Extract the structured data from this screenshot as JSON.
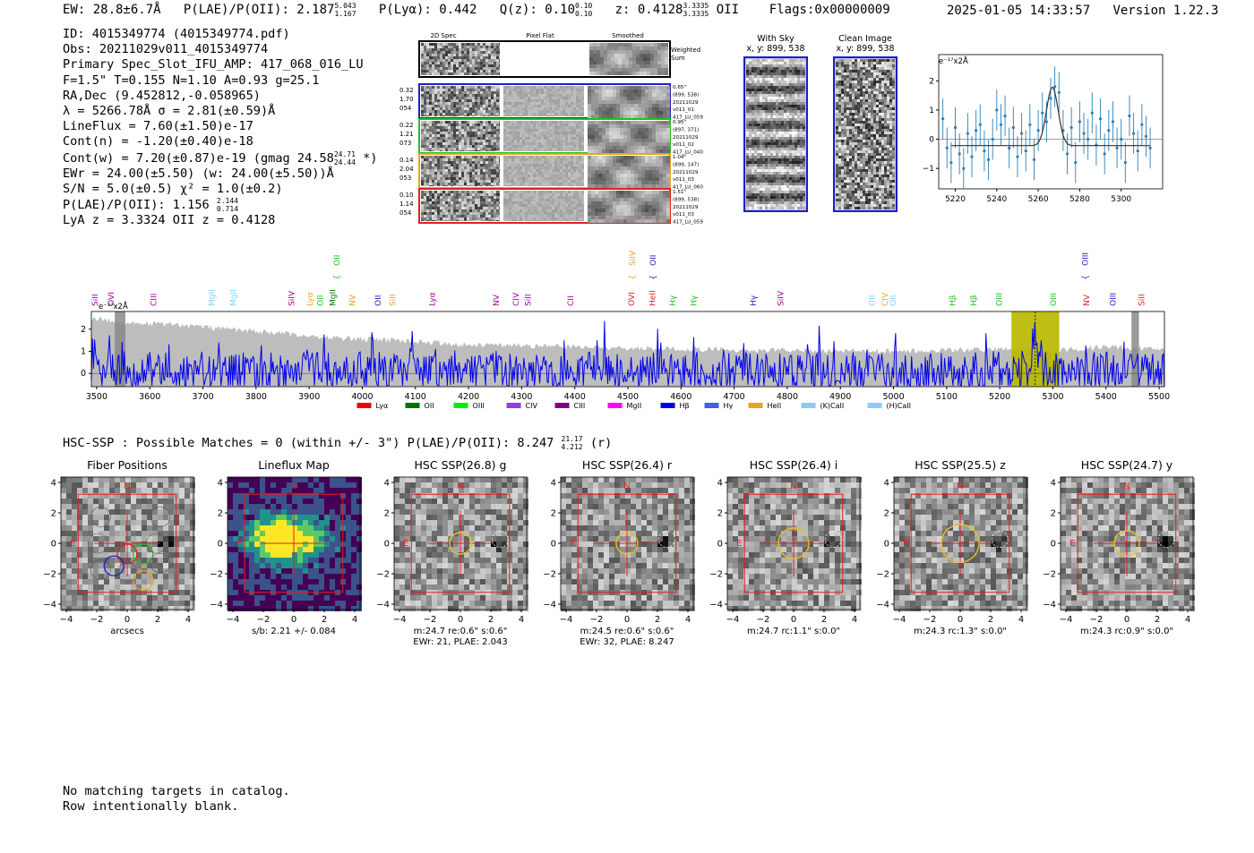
{
  "header": {
    "ew": "EW: 28.8±6.7Å",
    "plae_label": "P(LAE)/P(OII): 2.187",
    "plae_hi": "5.043",
    "plae_lo": "1.167",
    "plya": "P(Lyα): 0.442",
    "qz_label": "Q(z): 0.10",
    "qz_hi": "0.10",
    "qz_lo": "0.10",
    "z_label": "z: 0.4128",
    "z_hi": "3.3335",
    "z_lo": "3.3335",
    "z_suffix": "OII",
    "flags": "Flags:0x00000009",
    "datetime": "2025-01-05 14:33:57",
    "version": "Version 1.22.3"
  },
  "summary": {
    "id": "ID: 4015349774 (4015349774.pdf)",
    "obs": "Obs: 20211029v011_4015349774",
    "primary": "Primary Spec_Slot_IFU_AMP: 417_068_016_LU",
    "params": "F=1.5\"  T=0.155  N=1.10  A=0.93  g=25.1",
    "radec": "RA,Dec (9.452812,-0.058965)",
    "lambda": "λ = 5266.78Å   σ = 2.81(±0.59)Å",
    "lineflux": "LineFlux = 7.60(±1.50)e-17",
    "contn": "Cont(n) = -1.20(±0.40)e-18",
    "contw": "Cont(w) = 7.20(±0.87)e-19 (gmag 24.58",
    "contw_hi": "24.71",
    "contw_lo": "24.44",
    "contw_end": "*)",
    "ewr": "EWr = 24.00(±5.50) (w: 24.00(±5.50))Å",
    "sn": "S/N = 5.0(±0.5)  χ² = 1.0(±0.2)",
    "plae": "P(LAE)/P(OII): 1.156",
    "plae_hi": "2.144",
    "plae_lo": "0.714",
    "lya": "LyA z = 3.3324  OII z = 0.4128"
  },
  "cutouts": {
    "col_headers": [
      "2D Spec",
      "Pixel Flat",
      "Smoothed"
    ],
    "weighted_label": "Weighted Sum",
    "rows": [
      {
        "stats": [
          "0.32",
          "1.70",
          "054"
        ],
        "info": [
          "0.65\"",
          "(899, 538)",
          "20211029",
          "v011_01",
          "417_LU_059"
        ],
        "color": "#2020c0"
      },
      {
        "stats": [
          "0.22",
          "1.21",
          "073"
        ],
        "info": [
          "0.95\"",
          "(897, 371)",
          "20211029",
          "v011_02",
          "417_LU_040"
        ],
        "color": "#20c020"
      },
      {
        "stats": [
          "0.14",
          "2.04",
          "053"
        ],
        "info": [
          "1.04\"",
          "(899, 147)",
          "20211029",
          "v011_03",
          "417_LU_060"
        ],
        "color": "#f0a020"
      },
      {
        "stats": [
          "0.10",
          "1.14",
          "054"
        ],
        "info": [
          "1.51\"",
          "(899, 538)",
          "20211029",
          "v011_03",
          "417_LU_059"
        ],
        "color": "#e02020"
      }
    ]
  },
  "sky_panels": {
    "with_sky": "With Sky",
    "with_sky_xy": "x, y: 899, 538",
    "clean": "Clean Image",
    "clean_xy": "x, y: 899, 538"
  },
  "colors": {
    "main_line": "#0000ee",
    "sky_fill": "#bdbdbd",
    "highlight": "#b8b800",
    "fit_line": "#2f7fb5",
    "frame_red": "#e02020"
  },
  "chart_data": [
    {
      "id": "line-fit",
      "type": "scatter",
      "title": "",
      "ylabel": "e⁻¹⁷x2Å",
      "xlim": [
        5212,
        5320
      ],
      "ylim": [
        -1.7,
        2.9
      ],
      "xticks": [
        5220,
        5240,
        5260,
        5280,
        5300
      ],
      "yticks": [
        -1,
        0,
        1,
        2
      ],
      "x": [
        5214,
        5216,
        5218,
        5220,
        5222,
        5224,
        5226,
        5228,
        5230,
        5232,
        5234,
        5236,
        5238,
        5240,
        5242,
        5244,
        5246,
        5248,
        5250,
        5252,
        5254,
        5256,
        5258,
        5260,
        5262,
        5264,
        5266,
        5268,
        5270,
        5272,
        5274,
        5276,
        5278,
        5280,
        5282,
        5284,
        5286,
        5288,
        5290,
        5292,
        5294,
        5296,
        5298,
        5300,
        5302,
        5304,
        5306,
        5308,
        5310,
        5312,
        5314
      ],
      "y": [
        0.7,
        -0.3,
        -0.8,
        0.4,
        -0.5,
        -1.0,
        0.2,
        -0.6,
        0.3,
        0.5,
        -0.4,
        -0.7,
        0.0,
        1.0,
        0.5,
        0.8,
        -0.3,
        0.4,
        -0.6,
        0.2,
        -0.4,
        0.5,
        -0.7,
        0.3,
        0.9,
        0.6,
        1.4,
        1.8,
        1.6,
        0.3,
        -0.5,
        0.4,
        -0.8,
        0.6,
        0.2,
        0.0,
        0.9,
        -0.2,
        0.7,
        -0.5,
        0.3,
        0.6,
        -0.3,
        0.0,
        -0.8,
        0.8,
        0.2,
        -0.4,
        0.5,
        0.1,
        -0.3
      ],
      "err": [
        0.7,
        0.7,
        0.7,
        0.7,
        0.7,
        0.7,
        0.7,
        0.7,
        0.7,
        0.7,
        0.7,
        0.7,
        0.7,
        0.7,
        0.7,
        0.7,
        0.7,
        0.7,
        0.7,
        0.7,
        0.7,
        0.7,
        0.7,
        0.7,
        0.7,
        0.7,
        0.7,
        0.7,
        0.7,
        0.7,
        0.7,
        0.7,
        0.7,
        0.7,
        0.7,
        0.7,
        0.7,
        0.7,
        0.7,
        0.7,
        0.7,
        0.7,
        0.7,
        0.7,
        0.7,
        0.7,
        0.7,
        0.7,
        0.7,
        0.7,
        0.7
      ],
      "fit": {
        "center": 5266.8,
        "sigma": 2.81,
        "amp": 2.0,
        "base": -0.22
      }
    },
    {
      "id": "full-spectrum",
      "type": "line",
      "title": "",
      "ylabel_note": "e⁻¹⁷x2Å",
      "xlim": [
        3490,
        5510
      ],
      "ylim": [
        -0.6,
        2.8
      ],
      "xticks": [
        3500,
        3600,
        3700,
        3800,
        3900,
        4000,
        4100,
        4200,
        4300,
        4400,
        4500,
        4600,
        4700,
        4800,
        4900,
        5000,
        5100,
        5200,
        5300,
        5400,
        5500
      ],
      "yticks": [
        0,
        1,
        2
      ],
      "highlight_band": [
        5222,
        5312
      ],
      "line_center": 5266.78,
      "masked_bands": [
        [
          3534,
          3554
        ],
        [
          5448,
          5462
        ]
      ],
      "sky_envelope": {
        "x": [
          3490,
          3550,
          3650,
          3750,
          3850,
          3950,
          4050,
          4200,
          4400,
          4600,
          4800,
          5000,
          5200,
          5300,
          5400,
          5510
        ],
        "y": [
          2.5,
          2.3,
          2.2,
          2.0,
          1.8,
          1.6,
          1.5,
          1.3,
          1.2,
          1.1,
          1.05,
          1.0,
          1.1,
          1.0,
          1.2,
          1.1
        ]
      },
      "line_labels": [
        {
          "w": 3498,
          "t": "SiII",
          "c": "#a000a0",
          "r": 0
        },
        {
          "w": 3528,
          "t": "OVI",
          "c": "#a000a0",
          "r": 0
        },
        {
          "w": 3608,
          "t": "CIII",
          "c": "#a000a0",
          "r": 0
        },
        {
          "w": 3718,
          "t": "MgII",
          "c": "#87cefa",
          "r": 0
        },
        {
          "w": 3758,
          "t": "MgII",
          "c": "#87cefa",
          "r": 0
        },
        {
          "w": 3868,
          "t": "SiIV",
          "c": "#a000a0",
          "r": 0
        },
        {
          "w": 3902,
          "t": "Lyα",
          "c": "#f0a020",
          "r": 0
        },
        {
          "w": 3922,
          "t": "OII",
          "c": "#20c020",
          "r": 0
        },
        {
          "w": 3945,
          "t": "MgII",
          "c": "#008000",
          "r": 0
        },
        {
          "w": 3953,
          "t": "OII",
          "c": "#20c020",
          "r": 1
        },
        {
          "w": 3982,
          "t": "NV",
          "c": "#f0a020",
          "r": 0
        },
        {
          "w": 4030,
          "t": "OII",
          "c": "#2020c0",
          "r": 0
        },
        {
          "w": 4058,
          "t": "SiII",
          "c": "#f0a020",
          "r": 0
        },
        {
          "w": 4132,
          "t": "Lyα",
          "c": "#a000a0",
          "r": 0
        },
        {
          "w": 4253,
          "t": "NV",
          "c": "#a000a0",
          "r": 0
        },
        {
          "w": 4290,
          "t": "CIV",
          "c": "#a000a0",
          "r": 0
        },
        {
          "w": 4313,
          "t": "SiII",
          "c": "#a000a0",
          "r": 0
        },
        {
          "w": 4393,
          "t": "CII",
          "c": "#a000a0",
          "r": 0
        },
        {
          "w": 4508,
          "t": "OVI",
          "c": "#e02020",
          "r": 0
        },
        {
          "w": 4509,
          "t": "SiIV",
          "c": "#f0a020",
          "r": 1
        },
        {
          "w": 4547,
          "t": "HeII",
          "c": "#e02020",
          "r": 0
        },
        {
          "w": 4548,
          "t": "OII",
          "c": "#2020c0",
          "r": 1
        },
        {
          "w": 4585,
          "t": "Hγ",
          "c": "#20c020",
          "r": 0
        },
        {
          "w": 4625,
          "t": "Hγ",
          "c": "#20c020",
          "r": 0
        },
        {
          "w": 4737,
          "t": "Hγ",
          "c": "#2020c0",
          "r": 0
        },
        {
          "w": 4788,
          "t": "SiIV",
          "c": "#a000a0",
          "r": 0
        },
        {
          "w": 4960,
          "t": "OII",
          "c": "#87cefa",
          "r": 0
        },
        {
          "w": 4985,
          "t": "CIV",
          "c": "#f0a020",
          "r": 0
        },
        {
          "w": 5000,
          "t": "OII",
          "c": "#87cefa",
          "r": 0
        },
        {
          "w": 5112,
          "t": "Hβ",
          "c": "#20c020",
          "r": 0
        },
        {
          "w": 5152,
          "t": "Hβ",
          "c": "#20c020",
          "r": 0
        },
        {
          "w": 5200,
          "t": "OIII",
          "c": "#20c020",
          "r": 0
        },
        {
          "w": 5302,
          "t": "OIII",
          "c": "#20c020",
          "r": 0
        },
        {
          "w": 5364,
          "t": "NV",
          "c": "#e02020",
          "r": 0
        },
        {
          "w": 5362,
          "t": "OIII",
          "c": "#2020c0",
          "r": 2
        },
        {
          "w": 5414,
          "t": "OIII",
          "c": "#2020c0",
          "r": 0
        },
        {
          "w": 5468,
          "t": "SiII",
          "c": "#e02020",
          "r": 0
        }
      ],
      "legend": [
        {
          "name": "Lyα",
          "color": "#ee0000"
        },
        {
          "name": "OII",
          "color": "#007000"
        },
        {
          "name": "OIII",
          "color": "#00ee00"
        },
        {
          "name": "CIV",
          "color": "#9040e0"
        },
        {
          "name": "CIII",
          "color": "#800080"
        },
        {
          "name": "MgII",
          "color": "#ff00ff"
        },
        {
          "name": "Hβ",
          "color": "#0000ee"
        },
        {
          "name": "Hγ",
          "color": "#4060e0"
        },
        {
          "name": "HeII",
          "color": "#f0a020"
        },
        {
          "name": "(K)CaII",
          "color": "#87ceeb"
        },
        {
          "name": "(H)CaII",
          "color": "#87cefa"
        }
      ]
    }
  ],
  "hsc": {
    "title": "HSC-SSP : Possible Matches = 0 (within +/- 3\")  P(LAE)/P(OII): 8.247",
    "title_hi": "21.17",
    "title_lo": "4.212",
    "title_end": "(r)",
    "compass_n": "N",
    "compass_e": "E",
    "axis_ticks": [
      "4",
      "2",
      "0",
      "−2",
      "−4"
    ],
    "x_ticks": [
      "−4",
      "−2",
      "0",
      "2",
      "4"
    ],
    "panels": [
      {
        "title": "Fiber Positions",
        "caption": [
          "arcsecs"
        ],
        "kind": "fibers"
      },
      {
        "title": "Lineflux Map",
        "caption": [
          "s/b: 2.21 +/- 0.084"
        ],
        "kind": "lineflux"
      },
      {
        "title": "HSC SSP(26.8) g",
        "caption": [
          "m:24.7  re:0.6\"  s:0.6\"",
          "EWr: 21, PLAE: 2.043"
        ],
        "kind": "hsc",
        "r": 12,
        "seed": 3
      },
      {
        "title": "HSC SSP(26.4) r",
        "caption": [
          "m:24.5  re:0.6\"  s:0.6\"",
          "EWr: 32, PLAE: 8.247"
        ],
        "kind": "hsc",
        "r": 12,
        "seed": 7
      },
      {
        "title": "HSC SSP(26.4) i",
        "caption": [
          "m:24.7 rc:1.1\"  s:0.0\""
        ],
        "kind": "hsc",
        "r": 17,
        "seed": 11
      },
      {
        "title": "HSC SSP(25.5) z",
        "caption": [
          "m:24.3 rc:1.3\"  s:0.0\""
        ],
        "kind": "hsc",
        "r": 21,
        "seed": 13
      },
      {
        "title": "HSC SSP(24.7) y",
        "caption": [
          "m:24.3 rc:0.9\"  s:0.0\""
        ],
        "kind": "hsc",
        "r": 14,
        "seed": 17
      }
    ]
  },
  "footer": {
    "line1": "No matching targets in catalog.",
    "line2": "Row intentionally blank."
  }
}
